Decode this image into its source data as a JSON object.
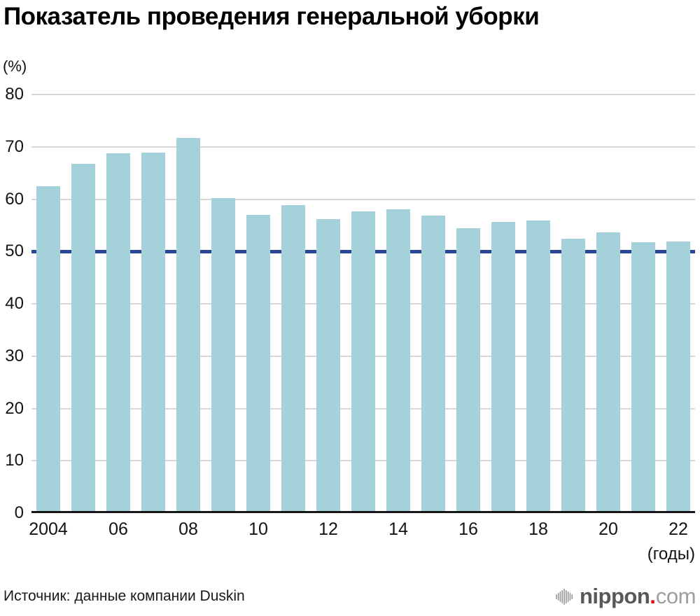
{
  "title": "Показатель проведения генеральной уборки",
  "chart_data": {
    "type": "bar",
    "title": "Показатель проведения генеральной уборки",
    "ylabel": "(%)",
    "xlabel": "(годы)",
    "categories": [
      2004,
      2005,
      2006,
      2007,
      2008,
      2009,
      2010,
      2011,
      2012,
      2013,
      2014,
      2015,
      2016,
      2017,
      2018,
      2019,
      2020,
      2021,
      2022
    ],
    "values": [
      62.5,
      66.8,
      68.7,
      68.9,
      71.7,
      60.2,
      57.0,
      58.9,
      56.2,
      57.7,
      58.0,
      56.9,
      54.5,
      55.7,
      55.9,
      52.4,
      53.6,
      51.8,
      51.9
    ],
    "x_tick_labels": [
      "2004",
      "06",
      "08",
      "10",
      "12",
      "14",
      "16",
      "18",
      "20",
      "22"
    ],
    "y_ticks": [
      0,
      10,
      20,
      30,
      40,
      50,
      60,
      70,
      80
    ],
    "ylim": [
      0,
      80
    ],
    "grid": true,
    "legend": "none",
    "reference_line": {
      "value": 50
    }
  },
  "footer": {
    "source": "Источник: данные компании Duskin",
    "logo": {
      "icon": "audio-wave-icon",
      "text_main": "nippon",
      "text_dot": ".",
      "text_suffix": "com"
    }
  },
  "colors": {
    "bar": "#a5d2da",
    "reference_line": "#2b4693",
    "gridline": "#d8d8d8",
    "axis": "#151515",
    "logo_gray": "#9b9b9c",
    "logo_text": "#58585a",
    "logo_com": "#9d9ea0",
    "logo_red": "#e60012"
  }
}
